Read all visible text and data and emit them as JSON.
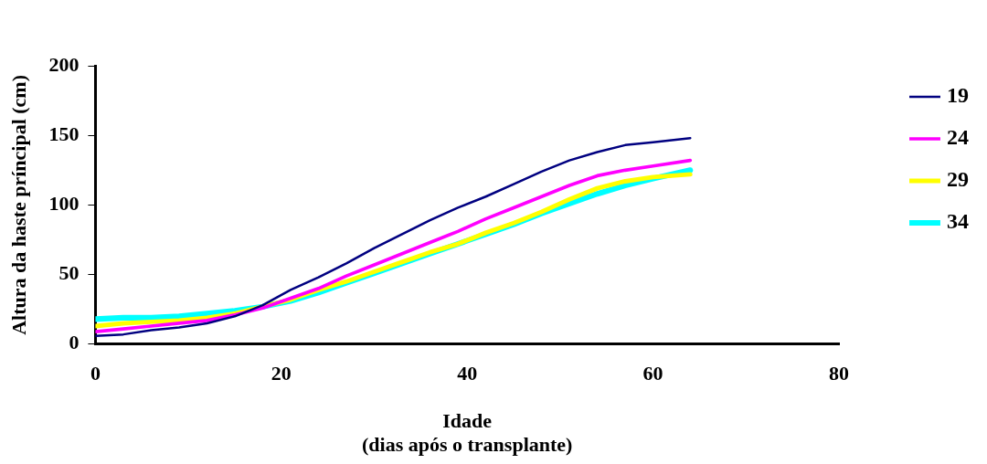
{
  "chart_data": {
    "type": "line",
    "xlabel": "Idade\n(dias após o transplante)",
    "ylabel": "Altura da haste príncipal (cm)",
    "x": [
      0,
      3,
      6,
      9,
      12,
      15,
      18,
      21,
      24,
      27,
      30,
      33,
      36,
      39,
      42,
      45,
      48,
      51,
      54,
      57,
      60,
      64
    ],
    "series": [
      {
        "name": "19",
        "color": "#000080",
        "values": [
          6,
          7,
          10,
          12,
          15,
          20,
          28,
          39,
          48,
          58,
          69,
          79,
          89,
          98,
          106,
          115,
          124,
          132,
          138,
          143,
          145,
          148
        ]
      },
      {
        "name": "24",
        "color": "#ff00ff",
        "values": [
          9,
          11,
          13,
          15,
          17,
          21,
          26,
          33,
          40,
          49,
          57,
          65,
          73,
          81,
          90,
          98,
          106,
          114,
          121,
          125,
          128,
          132
        ]
      },
      {
        "name": "29",
        "color": "#ffff00",
        "values": [
          13,
          15,
          16,
          17,
          19,
          22,
          27,
          32,
          39,
          45,
          52,
          59,
          66,
          72,
          80,
          87,
          95,
          104,
          112,
          117,
          120,
          122
        ]
      },
      {
        "name": "34",
        "color": "#00ffff",
        "values": [
          18,
          19,
          19,
          20,
          22,
          24,
          27,
          31,
          37,
          44,
          51,
          58,
          65,
          72,
          79,
          86,
          94,
          101,
          108,
          114,
          119,
          125
        ]
      }
    ],
    "xlim": [
      0,
      80
    ],
    "xticks": [
      0,
      20,
      40,
      60,
      80
    ],
    "ylim": [
      0,
      200
    ],
    "yticks": [
      0,
      50,
      100,
      150,
      200
    ],
    "grid": false,
    "legend": "right",
    "marker": "none",
    "line_style": "solid"
  }
}
